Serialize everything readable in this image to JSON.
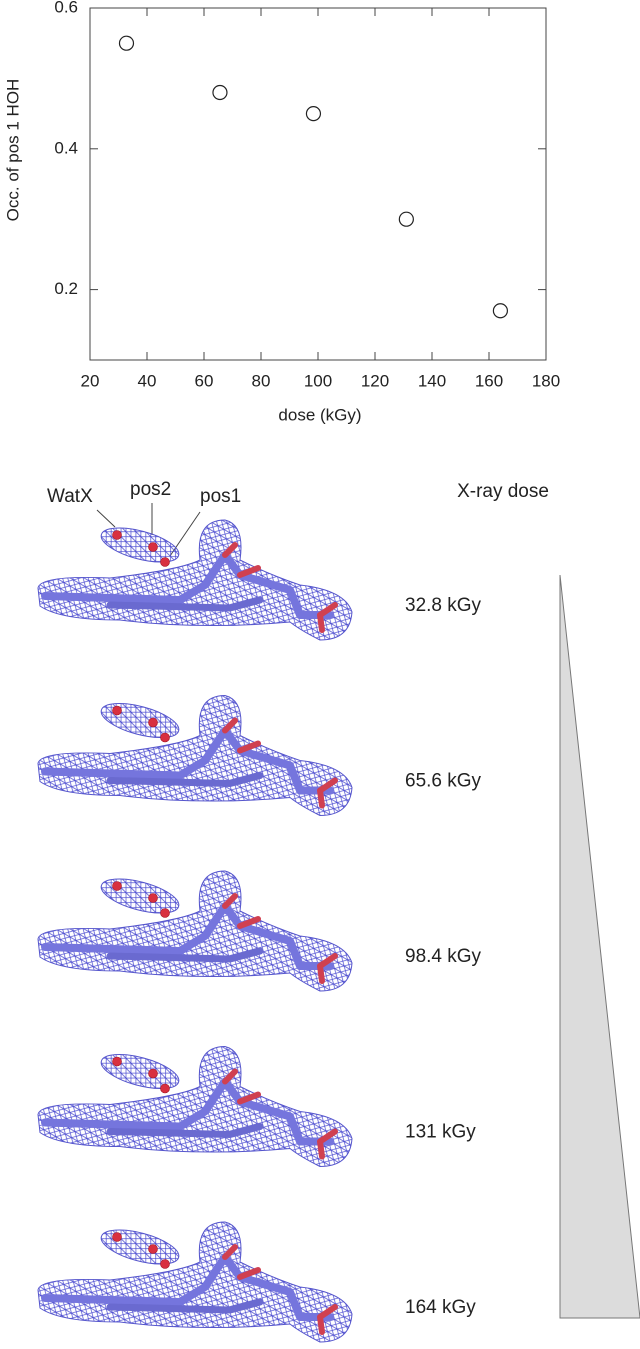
{
  "chart_data": {
    "type": "scatter",
    "x_label": "dose (kGy)",
    "y_label": "Occ. of pos 1 HOH",
    "x": [
      32.8,
      65.6,
      98.4,
      131,
      164
    ],
    "values": [
      0.55,
      0.48,
      0.45,
      0.3,
      0.17
    ],
    "xlim": [
      20,
      180
    ],
    "ylim": [
      0.1,
      0.6
    ],
    "xticks": [
      20,
      40,
      60,
      80,
      100,
      120,
      140,
      160,
      180
    ],
    "yticks": [
      0.2,
      0.4,
      0.6
    ],
    "marker_edge_color": "#222222"
  },
  "structures_panel": {
    "header": "X-ray dose",
    "labels": [
      "WatX",
      "pos2",
      "pos1"
    ],
    "dose_labels": [
      "32.8 kGy",
      "65.6 kGy",
      "98.4 kGy",
      "131 kGy",
      "164 kGy"
    ]
  }
}
